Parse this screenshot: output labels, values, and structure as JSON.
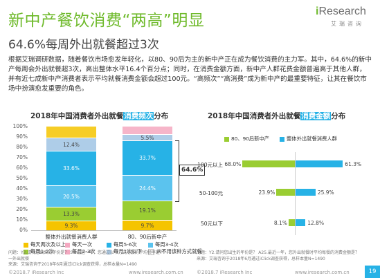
{
  "header": {
    "title": "新中产餐饮消费“两高”明显",
    "subtitle": "64.6%每周外出就餐超过3次",
    "paragraph": "根据艾瑞调研数据，随着餐饮市场愈发年轻化，以80、90后为主的新中产正在成为餐饮消费的主力军。其中，64.6%的新中产每周会外出就餐超3次，高出整体水平16.4个百分点；同时，在消费金额方面，新中产人群花费金额普遍高于其他人群，并有近七成新中产消费者表示平均就餐消费金额会超过100元。“高频次”“高消费”成为新中产的最重要特征，让其在餐饮市场中扮演愈发重要的角色。"
  },
  "logo": {
    "name_i": "i",
    "name_rest": "Research",
    "sub": "艾瑞咨询"
  },
  "colors": {
    "accent_green": "#6fba2c",
    "accent_blue": "#27b2e6",
    "freq": [
      "#f5c400",
      "#f4a8c0",
      "#9acd32",
      "#27b2e6",
      "#a8c8e8"
    ],
    "spend_green": "#9acd32",
    "spend_blue": "#27b2e6"
  },
  "chart_data": [
    {
      "type": "bar",
      "stacked": true,
      "title_prefix": "2018年中国消费者外出就餐",
      "title_highlight": "消费频次",
      "title_suffix": "分布",
      "categories": [
        "整体外出就餐消费人群",
        "80、90后新中产"
      ],
      "series": [
        {
          "name": "每天两次及以上",
          "values": [
            9.3,
            9.7
          ]
        },
        {
          "name": "每周1-2次",
          "values": [
            13.3,
            19.1
          ]
        },
        {
          "name": "每周3-4次",
          "values": [
            20.5,
            24.4
          ]
        },
        {
          "name": "每周5-6次",
          "values": [
            33.6,
            33.7
          ]
        },
        {
          "name": "每月1次以下",
          "values": [
            12.4,
            5.5
          ]
        },
        {
          "name": "每天一次",
          "values": [
            null,
            null
          ]
        },
        {
          "name": "每月2-3次",
          "values": [
            null,
            null
          ]
        },
        {
          "name": "从不用该种方式就餐",
          "values": [
            null,
            null
          ]
        }
      ],
      "bar_order_bottom_to_top": [
        "每天两次及以上",
        "每周1-2次",
        "每周3-4次",
        "每周5-6次",
        "每月1次以下"
      ],
      "annotation": "64.6%",
      "yticks": [
        "0%",
        "10%",
        "20%",
        "30%",
        "40%",
        "50%",
        "60%",
        "70%",
        "80%",
        "90%",
        "100%"
      ],
      "ylim": [
        0,
        100
      ],
      "legend": [
        "每天两次及以上",
        "每天一次",
        "每周5-6次",
        "每周3-4次",
        "每周1-2次",
        "每月2-3次",
        "每月1次以下",
        "从不用该种方式就餐"
      ],
      "note": [
        "问题：Y2.请问您出去的年份是？ S1.最近一年，您通过以下方式用餐的平均频率是？一",
        "一外出就餐",
        "来源：艾瑞咨询于2018年6月通过iClick调查获得，总样本量N=1490"
      ]
    },
    {
      "type": "bar",
      "orientation": "horizontal",
      "title_prefix": "2018年中国消费者外出就餐",
      "title_highlight": "消费金额",
      "title_suffix": "分布",
      "categories": [
        "100元以上",
        "50-100元",
        "50元以下"
      ],
      "series": [
        {
          "name": "80、90后新中产",
          "values": [
            68.0,
            23.9,
            8.1
          ]
        },
        {
          "name": "整体外出就餐消费人群",
          "values": [
            61.3,
            25.9,
            12.8
          ]
        }
      ],
      "note": [
        "问题：Y2.请问您出生的年份是？ A25.最近一年，您外出就餐时平均每餐的消费金额是？",
        "来源：艾瑞咨询于2018年6月通过iClick调查获得，总样本量N=1490"
      ]
    }
  ],
  "footer": {
    "left": "©2018.7 iResearch Inc",
    "center": "www.iresearch.com.cn",
    "left2": "©2018.7 iResearch Inc",
    "center2": "www.iresearch.com.cn",
    "page": "19"
  }
}
